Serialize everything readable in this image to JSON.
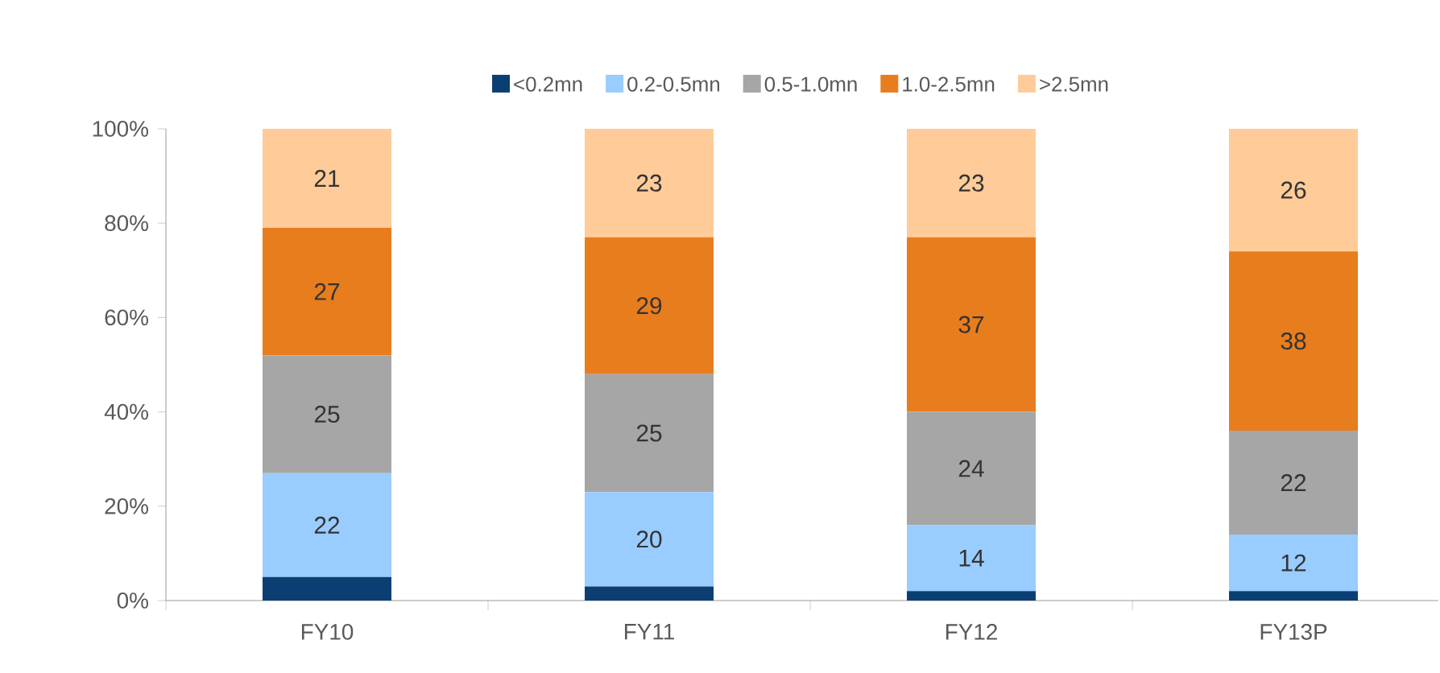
{
  "chart_data": {
    "type": "bar",
    "stacked": true,
    "legend": "top",
    "categories": [
      "FY10",
      "FY11",
      "FY12",
      "FY13P"
    ],
    "series": [
      {
        "name": "<0.2mn",
        "color": "#0b3f73",
        "values": [
          5,
          3,
          2,
          2
        ],
        "value_labels": [
          null,
          null,
          null,
          null
        ]
      },
      {
        "name": "0.2-0.5mn",
        "color": "#99ccff",
        "values": [
          22,
          20,
          14,
          12
        ],
        "value_labels": [
          "22",
          "20",
          "14",
          "12"
        ]
      },
      {
        "name": "0.5-1.0mn",
        "color": "#a6a6a6",
        "values": [
          25,
          25,
          24,
          22
        ],
        "value_labels": [
          "25",
          "25",
          "24",
          "22"
        ]
      },
      {
        "name": "1.0-2.5mn",
        "color": "#e87d1e",
        "values": [
          27,
          29,
          37,
          38
        ],
        "value_labels": [
          "27",
          "29",
          "37",
          "38"
        ]
      },
      {
        "name": ">2.5mn",
        "color": "#ffcc99",
        "values": [
          21,
          23,
          23,
          26
        ],
        "value_labels": [
          "21",
          "23",
          "23",
          "26"
        ]
      }
    ],
    "ylim": [
      0,
      100
    ],
    "yticks": [
      {
        "value": 0,
        "label": "0%"
      },
      {
        "value": 20,
        "label": "20%"
      },
      {
        "value": 40,
        "label": "40%"
      },
      {
        "value": 60,
        "label": "60%"
      },
      {
        "value": 80,
        "label": "80%"
      },
      {
        "value": 100,
        "label": "100%"
      }
    ]
  }
}
